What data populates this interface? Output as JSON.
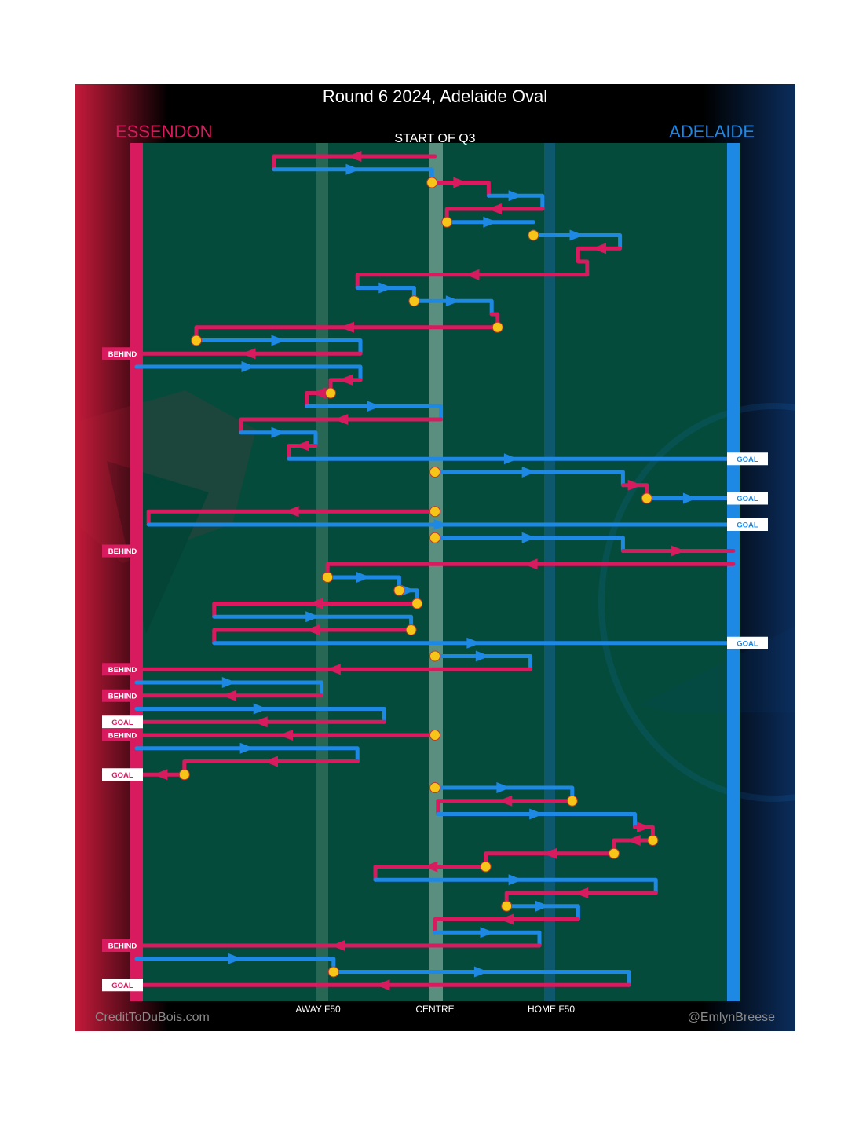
{
  "chart_data": {
    "type": "flow",
    "title": "Round 6 2024, Adelaide Oval",
    "subtitle": "START OF Q3",
    "teams": {
      "left": {
        "name": "ESSENDON",
        "color": "#d81b5e"
      },
      "right": {
        "name": "ADELAIDE",
        "color": "#1e88e5"
      }
    },
    "axis_labels": [
      "AWAY F50",
      "CENTRE",
      "HOME F50"
    ],
    "credits": {
      "left": "CreditToDuBois.com",
      "right": "@EmlynBreese"
    },
    "colors": {
      "field": "#044b3c",
      "stoppage": "#f5c518",
      "background": "#000000"
    },
    "x_scale": "0 = Essendon goal line, 50 = centre, 100 = Adelaide goal line",
    "chains": [
      {
        "team": "ess",
        "start": 50,
        "path": [
          [
            50,
            1
          ],
          [
            23,
            1
          ],
          [
            23,
            2
          ]
        ]
      },
      {
        "team": "ade",
        "start": null,
        "path": [
          [
            23,
            2
          ],
          [
            49.5,
            2
          ],
          [
            49.5,
            3
          ]
        ]
      },
      {
        "team": "ess",
        "stop": true,
        "path": [
          [
            49.5,
            3
          ],
          [
            59,
            3
          ],
          [
            59,
            4
          ]
        ]
      },
      {
        "team": "ade",
        "path": [
          [
            59,
            4
          ],
          [
            68,
            4
          ],
          [
            68,
            5
          ]
        ]
      },
      {
        "team": "ess",
        "path": [
          [
            68,
            5
          ],
          [
            52,
            5
          ],
          [
            52,
            6
          ]
        ]
      },
      {
        "team": "ade",
        "stop": true,
        "path": [
          [
            52,
            6
          ],
          [
            66.5,
            6
          ]
        ]
      },
      {
        "team": "ade",
        "stop": true,
        "path": [
          [
            66.5,
            7
          ],
          [
            81,
            7
          ],
          [
            81,
            8
          ]
        ]
      },
      {
        "team": "ess",
        "path": [
          [
            81,
            8
          ],
          [
            74,
            8
          ],
          [
            74,
            9
          ],
          [
            75.5,
            9
          ],
          [
            75.5,
            10
          ]
        ]
      },
      {
        "team": "ess",
        "path": [
          [
            75.5,
            10
          ],
          [
            37,
            10
          ],
          [
            37,
            11
          ]
        ]
      },
      {
        "team": "ade",
        "path": [
          [
            37,
            11
          ],
          [
            46.5,
            11
          ],
          [
            46.5,
            12
          ]
        ]
      },
      {
        "team": "ade",
        "stop": true,
        "path": [
          [
            46.5,
            12
          ],
          [
            59.5,
            12
          ],
          [
            59.5,
            13
          ]
        ]
      },
      {
        "team": "ess",
        "path": [
          [
            59.5,
            13
          ],
          [
            60.5,
            13
          ],
          [
            60.5,
            14
          ]
        ]
      },
      {
        "team": "ess",
        "stop": true,
        "path": [
          [
            60.5,
            14
          ],
          [
            10,
            14
          ],
          [
            10,
            15
          ]
        ]
      },
      {
        "team": "ade",
        "stop": true,
        "path": [
          [
            10,
            15
          ],
          [
            37.5,
            15
          ],
          [
            37.5,
            16
          ]
        ]
      },
      {
        "team": "ess",
        "end": "BEHIND",
        "path": [
          [
            37.5,
            16
          ],
          [
            0,
            16
          ]
        ]
      },
      {
        "team": "ade",
        "path": [
          [
            0,
            17
          ],
          [
            37.5,
            17
          ],
          [
            37.5,
            18
          ]
        ]
      },
      {
        "team": "ess",
        "path": [
          [
            37.5,
            18
          ],
          [
            32.5,
            18
          ],
          [
            32.5,
            19
          ]
        ]
      },
      {
        "team": "ess",
        "stop": true,
        "path": [
          [
            32.5,
            19
          ],
          [
            28.5,
            19
          ],
          [
            28.5,
            20
          ]
        ]
      },
      {
        "team": "ade",
        "path": [
          [
            28.5,
            20
          ],
          [
            51,
            20
          ],
          [
            51,
            21
          ]
        ]
      },
      {
        "team": "ess",
        "path": [
          [
            51,
            21
          ],
          [
            17.5,
            21
          ],
          [
            17.5,
            22
          ]
        ]
      },
      {
        "team": "ade",
        "path": [
          [
            17.5,
            22
          ],
          [
            30,
            22
          ],
          [
            30,
            23
          ]
        ]
      },
      {
        "team": "ess",
        "path": [
          [
            30,
            23
          ],
          [
            25.5,
            23
          ],
          [
            25.5,
            24
          ]
        ]
      },
      {
        "team": "ade",
        "end": "GOAL",
        "path": [
          [
            25.5,
            24
          ],
          [
            100,
            24
          ]
        ]
      },
      {
        "team": "ade",
        "stop": true,
        "path": [
          [
            50,
            25
          ],
          [
            81.5,
            25
          ],
          [
            81.5,
            26
          ]
        ]
      },
      {
        "team": "ess",
        "path": [
          [
            81.5,
            26
          ],
          [
            85.5,
            26
          ],
          [
            85.5,
            27
          ]
        ]
      },
      {
        "team": "ade",
        "end": "GOAL",
        "stop": true,
        "path": [
          [
            85.5,
            27
          ],
          [
            100,
            27
          ]
        ]
      },
      {
        "team": "ess",
        "stop": true,
        "path": [
          [
            50,
            28
          ],
          [
            2,
            28
          ],
          [
            2,
            29
          ]
        ]
      },
      {
        "team": "ade",
        "end": "GOAL",
        "path": [
          [
            2,
            29
          ],
          [
            100,
            29
          ]
        ]
      },
      {
        "team": "ade",
        "stop": true,
        "path": [
          [
            50,
            30
          ],
          [
            81.5,
            30
          ],
          [
            81.5,
            31
          ]
        ]
      },
      {
        "team": "ess",
        "end": "BEHIND",
        "path": [
          [
            81.5,
            31
          ],
          [
            100,
            31
          ]
        ]
      },
      {
        "team": "ess",
        "path": [
          [
            100,
            32
          ],
          [
            32,
            32
          ],
          [
            32,
            33
          ]
        ]
      },
      {
        "team": "ade",
        "stop": true,
        "path": [
          [
            32,
            33
          ],
          [
            44,
            33
          ],
          [
            44,
            34
          ]
        ]
      },
      {
        "team": "ade",
        "stop": true,
        "path": [
          [
            44,
            34
          ],
          [
            47,
            34
          ],
          [
            47,
            35
          ]
        ]
      },
      {
        "team": "ess",
        "stop": true,
        "path": [
          [
            47,
            35
          ],
          [
            13,
            35
          ],
          [
            13,
            36
          ]
        ]
      },
      {
        "team": "ade",
        "path": [
          [
            13,
            36
          ],
          [
            46,
            36
          ],
          [
            46,
            37
          ]
        ]
      },
      {
        "team": "ess",
        "stop": true,
        "path": [
          [
            46,
            37
          ],
          [
            13,
            37
          ],
          [
            13,
            38
          ]
        ]
      },
      {
        "team": "ade",
        "end": "GOAL",
        "path": [
          [
            13,
            38
          ],
          [
            100,
            38
          ]
        ]
      },
      {
        "team": "ade",
        "stop": true,
        "path": [
          [
            50,
            39
          ],
          [
            66,
            39
          ],
          [
            66,
            40
          ]
        ]
      },
      {
        "team": "ess",
        "end": "BEHIND",
        "path": [
          [
            66,
            40
          ],
          [
            0,
            40
          ]
        ]
      },
      {
        "team": "ade",
        "path": [
          [
            0,
            41
          ],
          [
            31,
            41
          ],
          [
            31,
            42
          ]
        ]
      },
      {
        "team": "ess",
        "end": "BEHIND",
        "path": [
          [
            31,
            42
          ],
          [
            0,
            42
          ]
        ]
      },
      {
        "team": "ade",
        "path": [
          [
            0,
            43
          ],
          [
            41.5,
            43
          ],
          [
            41.5,
            44
          ]
        ]
      },
      {
        "team": "ess",
        "end": "GOAL",
        "path": [
          [
            41.5,
            44
          ],
          [
            0,
            44
          ]
        ]
      },
      {
        "team": "ess",
        "end": "BEHIND",
        "stop": true,
        "path": [
          [
            50,
            45
          ],
          [
            0,
            45
          ]
        ]
      },
      {
        "team": "ade",
        "path": [
          [
            0,
            46
          ],
          [
            37,
            46
          ],
          [
            37,
            47
          ]
        ]
      },
      {
        "team": "ess",
        "path": [
          [
            37,
            47
          ],
          [
            8,
            47
          ],
          [
            8,
            48
          ]
        ]
      },
      {
        "team": "ess",
        "end": "GOAL",
        "stop": true,
        "path": [
          [
            8,
            48
          ],
          [
            0,
            48
          ]
        ]
      },
      {
        "team": "ade",
        "stop": true,
        "path": [
          [
            50,
            49
          ],
          [
            73,
            49
          ],
          [
            73,
            50
          ]
        ]
      },
      {
        "team": "ess",
        "stop": true,
        "path": [
          [
            73,
            50
          ],
          [
            50.5,
            50
          ],
          [
            50.5,
            51
          ]
        ]
      },
      {
        "team": "ade",
        "path": [
          [
            50.5,
            51
          ],
          [
            83.5,
            51
          ],
          [
            83.5,
            52
          ]
        ]
      },
      {
        "team": "ess",
        "path": [
          [
            83.5,
            52
          ],
          [
            86.5,
            52
          ],
          [
            86.5,
            53
          ]
        ]
      },
      {
        "team": "ess",
        "stop": true,
        "path": [
          [
            86.5,
            53
          ],
          [
            80,
            53
          ],
          [
            80,
            54
          ]
        ]
      },
      {
        "team": "ess",
        "stop": true,
        "path": [
          [
            80,
            54
          ],
          [
            58.5,
            54
          ],
          [
            58.5,
            55
          ]
        ]
      },
      {
        "team": "ess",
        "stop": true,
        "path": [
          [
            58.5,
            55
          ],
          [
            40,
            55
          ],
          [
            40,
            56
          ]
        ]
      },
      {
        "team": "ade",
        "path": [
          [
            40,
            56
          ],
          [
            87,
            56
          ],
          [
            87,
            57
          ]
        ]
      },
      {
        "team": "ess",
        "path": [
          [
            87,
            57
          ],
          [
            62,
            57
          ],
          [
            62,
            58
          ]
        ]
      },
      {
        "team": "ade",
        "stop": true,
        "path": [
          [
            62,
            58
          ],
          [
            74,
            58
          ],
          [
            74,
            59
          ]
        ]
      },
      {
        "team": "ess",
        "path": [
          [
            74,
            59
          ],
          [
            50,
            59
          ],
          [
            50,
            60
          ]
        ]
      },
      {
        "team": "ade",
        "path": [
          [
            50,
            60
          ],
          [
            67.5,
            60
          ],
          [
            67.5,
            61
          ]
        ]
      },
      {
        "team": "ess",
        "end": "BEHIND",
        "path": [
          [
            67.5,
            61
          ],
          [
            0,
            61
          ]
        ]
      },
      {
        "team": "ade",
        "path": [
          [
            0,
            62
          ],
          [
            33,
            62
          ],
          [
            33,
            63
          ]
        ]
      },
      {
        "team": "ade",
        "stop": true,
        "path": [
          [
            33,
            63
          ],
          [
            82.5,
            63
          ],
          [
            82.5,
            64
          ]
        ]
      },
      {
        "team": "ess",
        "end": "GOAL",
        "path": [
          [
            82.5,
            64
          ],
          [
            0,
            64
          ]
        ]
      }
    ]
  }
}
